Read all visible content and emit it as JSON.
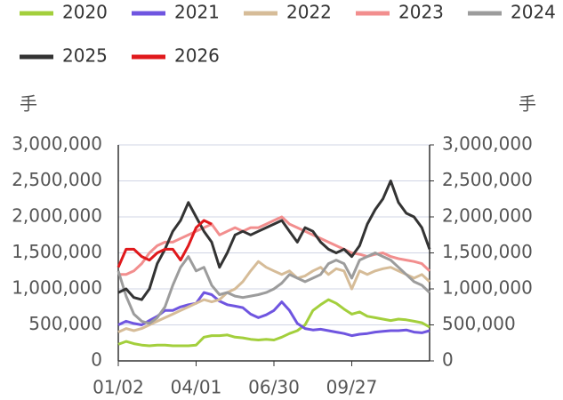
{
  "chart_data": {
    "type": "line",
    "y_unit": "手",
    "y2_unit": "手",
    "categories": [
      "01/02",
      null,
      null,
      null,
      null,
      null,
      null,
      null,
      null,
      null,
      "04/01",
      null,
      null,
      null,
      null,
      null,
      null,
      null,
      null,
      null,
      "06/30",
      null,
      null,
      null,
      null,
      null,
      null,
      null,
      null,
      null,
      "09/27",
      null,
      null,
      null,
      null,
      null,
      null,
      null,
      null,
      null,
      null
    ],
    "ylim": [
      0,
      3000000
    ],
    "yticks": [
      0,
      {
        "value": 500000,
        "label": "500,000"
      },
      {
        "value": 1000000,
        "label": "1,000,000"
      },
      {
        "value": 1500000,
        "label": "1,500,000"
      },
      {
        "value": 2000000,
        "label": "2,000,000"
      },
      {
        "value": 2500000,
        "label": "2,500,000"
      },
      {
        "value": 3000000,
        "label": "3,000,000"
      }
    ],
    "y2lim": [
      0,
      3000000
    ],
    "y2ticks": [
      0,
      {
        "value": 500000,
        "label": "500,000"
      },
      {
        "value": 1000000,
        "label": "1,000,000"
      },
      {
        "value": 1500000,
        "label": "1,500,000"
      },
      {
        "value": 2000000,
        "label": "2,000,000"
      },
      {
        "value": 2500000,
        "label": "2,500,000"
      },
      {
        "value": 3000000,
        "label": "3,000,000"
      }
    ],
    "grid": true,
    "legend": "top",
    "series": [
      {
        "name": "2020",
        "color": "#a3cf3c",
        "values": [
          230000,
          270000,
          240000,
          220000,
          210000,
          220000,
          220000,
          210000,
          210000,
          210000,
          220000,
          330000,
          350000,
          350000,
          360000,
          330000,
          320000,
          300000,
          290000,
          300000,
          290000,
          330000,
          380000,
          420000,
          500000,
          700000,
          780000,
          850000,
          800000,
          720000,
          650000,
          680000,
          620000,
          600000,
          580000,
          560000,
          580000,
          570000,
          550000,
          530000,
          470000
        ]
      },
      {
        "name": "2021",
        "color": "#6f55e0",
        "values": [
          500000,
          550000,
          520000,
          500000,
          560000,
          620000,
          700000,
          700000,
          750000,
          780000,
          800000,
          950000,
          920000,
          830000,
          780000,
          760000,
          740000,
          650000,
          600000,
          640000,
          700000,
          820000,
          700000,
          520000,
          450000,
          430000,
          440000,
          420000,
          400000,
          380000,
          350000,
          370000,
          380000,
          400000,
          410000,
          420000,
          420000,
          430000,
          400000,
          390000,
          420000
        ]
      },
      {
        "name": "2022",
        "color": "#d6bc98",
        "values": [
          400000,
          450000,
          420000,
          450000,
          500000,
          550000,
          600000,
          650000,
          700000,
          750000,
          800000,
          850000,
          820000,
          850000,
          950000,
          1000000,
          1100000,
          1250000,
          1380000,
          1300000,
          1250000,
          1200000,
          1250000,
          1150000,
          1180000,
          1250000,
          1300000,
          1200000,
          1280000,
          1250000,
          1000000,
          1250000,
          1200000,
          1250000,
          1280000,
          1300000,
          1250000,
          1200000,
          1150000,
          1200000,
          1100000
        ]
      },
      {
        "name": "2023",
        "color": "#f28e8e",
        "values": [
          1200000,
          1200000,
          1250000,
          1350000,
          1500000,
          1600000,
          1650000,
          1650000,
          1700000,
          1750000,
          1800000,
          1850000,
          1900000,
          1750000,
          1800000,
          1850000,
          1800000,
          1850000,
          1850000,
          1900000,
          1950000,
          2000000,
          1900000,
          1850000,
          1800000,
          1750000,
          1700000,
          1650000,
          1600000,
          1550000,
          1500000,
          1480000,
          1450000,
          1480000,
          1500000,
          1450000,
          1420000,
          1400000,
          1380000,
          1350000,
          1250000
        ]
      },
      {
        "name": "2024",
        "color": "#9c9c9c",
        "values": [
          1250000,
          900000,
          650000,
          550000,
          520000,
          600000,
          750000,
          1050000,
          1300000,
          1450000,
          1250000,
          1300000,
          1050000,
          920000,
          950000,
          900000,
          880000,
          900000,
          920000,
          950000,
          1000000,
          1080000,
          1200000,
          1150000,
          1100000,
          1150000,
          1200000,
          1350000,
          1400000,
          1350000,
          1150000,
          1400000,
          1450000,
          1500000,
          1450000,
          1400000,
          1300000,
          1200000,
          1100000,
          1050000,
          950000
        ]
      },
      {
        "name": "2025",
        "color": "#333333",
        "values": [
          950000,
          1000000,
          880000,
          850000,
          1000000,
          1350000,
          1550000,
          1800000,
          1950000,
          2200000,
          2000000,
          1800000,
          1650000,
          1300000,
          1500000,
          1750000,
          1800000,
          1750000,
          1800000,
          1850000,
          1900000,
          1950000,
          1800000,
          1650000,
          1850000,
          1800000,
          1650000,
          1550000,
          1500000,
          1550000,
          1450000,
          1600000,
          1900000,
          2100000,
          2250000,
          2500000,
          2200000,
          2050000,
          2000000,
          1850000,
          1550000
        ]
      },
      {
        "name": "2026",
        "color": "#e0191c",
        "values": [
          1300000,
          1550000,
          1550000,
          1450000,
          1400000,
          1500000,
          1550000,
          1550000,
          1400000,
          1600000,
          1850000,
          1950000,
          1900000,
          null,
          null,
          null,
          null,
          null,
          null,
          null,
          null,
          null,
          null,
          null,
          null,
          null,
          null,
          null,
          null,
          null,
          null,
          null,
          null,
          null,
          null,
          null,
          null,
          null,
          null,
          null,
          null
        ]
      }
    ]
  }
}
